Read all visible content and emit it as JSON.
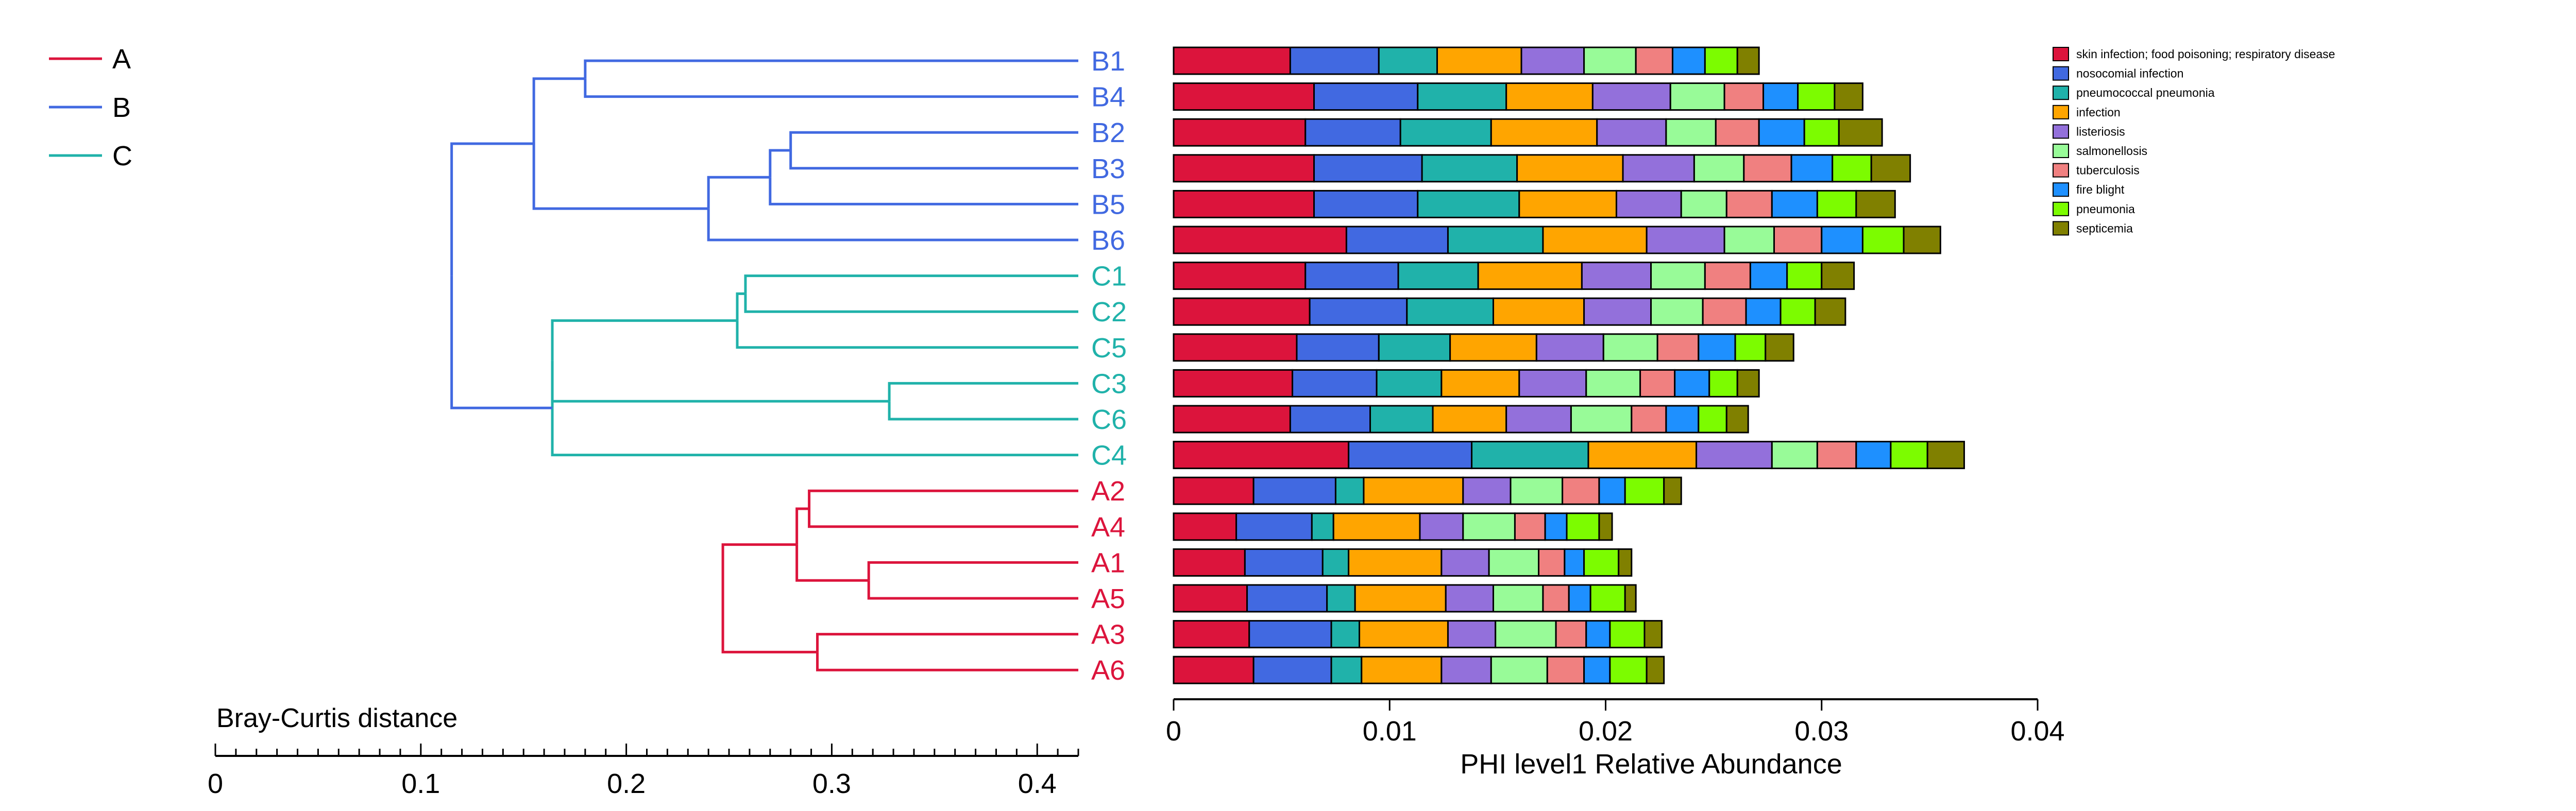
{
  "chart_data": [
    {
      "type": "dendrogram",
      "xlabel": "Bray-Curtis distance",
      "xlim": [
        0,
        0.42
      ],
      "ticks": [
        "0",
        "0.1",
        "0.2",
        "0.3",
        "0.4"
      ],
      "legend": [
        {
          "name": "A",
          "color": "#dc143c"
        },
        {
          "name": "B",
          "color": "#4169e1"
        },
        {
          "name": "C",
          "color": "#20b2aa"
        }
      ],
      "leaves": [
        "B1",
        "B4",
        "B2",
        "B3",
        "B5",
        "B6",
        "C1",
        "C2",
        "C5",
        "C3",
        "C6",
        "C4",
        "A2",
        "A4",
        "A1",
        "A5",
        "A3",
        "A6"
      ],
      "leaf_groups": [
        "B",
        "B",
        "B",
        "B",
        "B",
        "B",
        "C",
        "C",
        "C",
        "C",
        "C",
        "C",
        "A",
        "A",
        "A",
        "A",
        "A",
        "A"
      ],
      "merges": [
        {
          "left": "B1",
          "right": "B4",
          "height": 0.18,
          "group": "B"
        },
        {
          "left": "B2",
          "right": "B3",
          "height": 0.28,
          "group": "B"
        },
        {
          "left": "B2+B3",
          "right": "B5",
          "height": 0.27,
          "group": "B"
        },
        {
          "left": "B2+B3+B5",
          "right": "B6",
          "height": 0.24,
          "group": "B"
        },
        {
          "left": "B1+B4",
          "right": "B2+B3+B5+B6",
          "height": 0.155,
          "group": "B"
        },
        {
          "left": "C1",
          "right": "C2",
          "height": 0.258,
          "group": "C"
        },
        {
          "left": "C1+C2",
          "right": "C5",
          "height": 0.254,
          "group": "C"
        },
        {
          "left": "C3",
          "right": "C6",
          "height": 0.328,
          "group": "C"
        },
        {
          "left": "C1+C2+C5",
          "right": "C3+C6",
          "height": 0.164,
          "group": "C"
        },
        {
          "left": "C1+C2+C5+C3+C6",
          "right": "C4",
          "height": 0.164,
          "group": "C"
        },
        {
          "left": "B",
          "right": "C",
          "height": 0.115,
          "group": "B"
        },
        {
          "left": "A2",
          "right": "A4",
          "height": 0.289,
          "group": "A"
        },
        {
          "left": "A1",
          "right": "A5",
          "height": 0.318,
          "group": "A"
        },
        {
          "left": "A2+A4",
          "right": "A1+A5",
          "height": 0.283,
          "group": "A"
        },
        {
          "left": "A3",
          "right": "A6",
          "height": 0.293,
          "group": "A"
        },
        {
          "left": "A2+A4+A1+A5",
          "right": "A3+A6",
          "height": 0.247,
          "group": "A"
        },
        {
          "left": "B+C",
          "right": "A",
          "height": 0.0,
          "group": "root"
        }
      ]
    },
    {
      "type": "stacked_bar_horizontal",
      "xlabel": "PHI level1 Relative Abundance",
      "xlim": [
        0,
        0.04
      ],
      "ticks": [
        "0",
        "0.01",
        "0.02",
        "0.03",
        "0.04"
      ],
      "categories": [
        "B1",
        "B4",
        "B2",
        "B3",
        "B5",
        "B6",
        "C1",
        "C2",
        "C5",
        "C3",
        "C6",
        "C4",
        "A2",
        "A4",
        "A1",
        "A5",
        "A3",
        "A6"
      ],
      "series": [
        {
          "name": "skin infection; food poisoning; respiratory disease",
          "color": "#dc143c",
          "values": [
            0.0054,
            0.0065,
            0.0061,
            0.0065,
            0.0065,
            0.008,
            0.0061,
            0.0063,
            0.0057,
            0.0055,
            0.0054,
            0.0081,
            0.0037,
            0.0029,
            0.0033,
            0.0034,
            0.0035,
            0.0037
          ]
        },
        {
          "name": "nosocomial infection",
          "color": "#4169e1",
          "values": [
            0.0041,
            0.0048,
            0.0044,
            0.005,
            0.0048,
            0.0047,
            0.0043,
            0.0045,
            0.0038,
            0.0039,
            0.0037,
            0.0057,
            0.0038,
            0.0035,
            0.0036,
            0.0037,
            0.0038,
            0.0036
          ]
        },
        {
          "name": "pneumococcal pneumonia",
          "color": "#20b2aa",
          "values": [
            0.0027,
            0.0041,
            0.0042,
            0.0044,
            0.0047,
            0.0044,
            0.0037,
            0.004,
            0.0033,
            0.003,
            0.0029,
            0.0054,
            0.0013,
            0.001,
            0.0012,
            0.0013,
            0.0013,
            0.0014
          ]
        },
        {
          "name": "infection",
          "color": "#ffa500",
          "values": [
            0.0039,
            0.004,
            0.0049,
            0.0049,
            0.0045,
            0.0048,
            0.0048,
            0.0042,
            0.004,
            0.0036,
            0.0034,
            0.005,
            0.0046,
            0.004,
            0.0043,
            0.0042,
            0.0041,
            0.0037
          ]
        },
        {
          "name": "listeriosis",
          "color": "#9370db",
          "values": [
            0.0029,
            0.0036,
            0.0032,
            0.0033,
            0.003,
            0.0036,
            0.0032,
            0.0031,
            0.0031,
            0.0031,
            0.003,
            0.0035,
            0.0022,
            0.002,
            0.0022,
            0.0022,
            0.0022,
            0.0023
          ]
        },
        {
          "name": "salmonellosis",
          "color": "#98fb98",
          "values": [
            0.0024,
            0.0025,
            0.0023,
            0.0023,
            0.0021,
            0.0023,
            0.0025,
            0.0024,
            0.0025,
            0.0025,
            0.0028,
            0.0021,
            0.0024,
            0.0024,
            0.0023,
            0.0023,
            0.0028,
            0.0026
          ]
        },
        {
          "name": "tuberculosis",
          "color": "#f08080",
          "values": [
            0.0017,
            0.0018,
            0.002,
            0.0022,
            0.0021,
            0.0022,
            0.0021,
            0.002,
            0.0019,
            0.0016,
            0.0016,
            0.0018,
            0.0017,
            0.0014,
            0.0012,
            0.0012,
            0.0014,
            0.0017
          ]
        },
        {
          "name": "fire blight",
          "color": "#1e90ff",
          "values": [
            0.0015,
            0.0016,
            0.0021,
            0.0019,
            0.0021,
            0.0019,
            0.0017,
            0.0016,
            0.0017,
            0.0016,
            0.0015,
            0.0016,
            0.0012,
            0.001,
            0.0009,
            0.001,
            0.0011,
            0.0012
          ]
        },
        {
          "name": "pneumonia",
          "color": "#7cfc00",
          "values": [
            0.0015,
            0.0017,
            0.0016,
            0.0018,
            0.0018,
            0.0019,
            0.0016,
            0.0016,
            0.0014,
            0.0013,
            0.0013,
            0.0017,
            0.0018,
            0.0015,
            0.0016,
            0.0016,
            0.0016,
            0.0017
          ]
        },
        {
          "name": "septicemia",
          "color": "#808000",
          "values": [
            0.001,
            0.0013,
            0.002,
            0.0018,
            0.0018,
            0.0017,
            0.0015,
            0.0014,
            0.0013,
            0.001,
            0.001,
            0.0017,
            0.0008,
            0.0006,
            0.0006,
            0.0005,
            0.0008,
            0.0008
          ]
        }
      ]
    }
  ],
  "root_color": "#1e8eb0"
}
